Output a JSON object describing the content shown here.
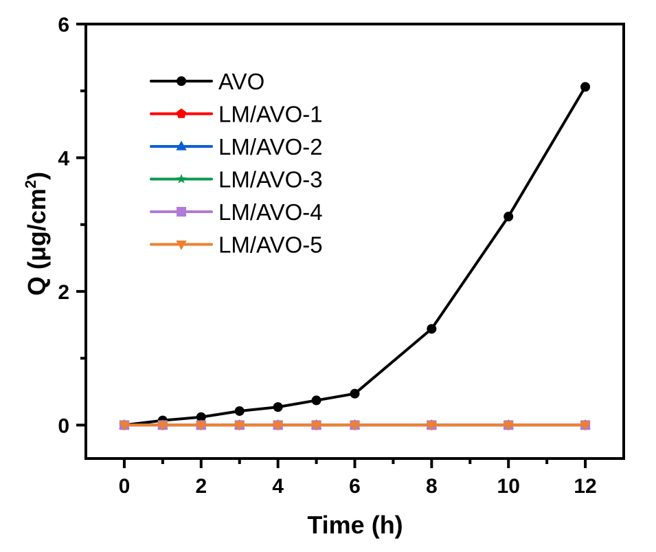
{
  "chart_data": {
    "type": "line",
    "title": "",
    "xlabel": "Time (h)",
    "ylabel": "Q (μg/cm²)",
    "ylabel_parts": {
      "main": "Q (μg/cm",
      "sup": "2",
      "close": ")"
    },
    "xlim": [
      -1,
      13
    ],
    "ylim": [
      -0.5,
      6
    ],
    "x_ticks": [
      0,
      2,
      4,
      6,
      8,
      10,
      12
    ],
    "x_minor_ticks": [
      1,
      3,
      5,
      7,
      9,
      11
    ],
    "y_ticks": [
      0,
      2,
      4,
      6
    ],
    "y_minor_ticks": [
      1,
      3,
      5
    ],
    "grid": false,
    "legend_position": "top-left",
    "x": [
      0,
      1,
      2,
      3,
      4,
      5,
      6,
      8,
      10,
      12
    ],
    "series": [
      {
        "name": "AVO",
        "color": "#000000",
        "marker": "circle",
        "values": [
          0,
          0.07,
          0.12,
          0.21,
          0.27,
          0.37,
          0.47,
          1.44,
          3.12,
          5.06
        ]
      },
      {
        "name": "LM/AVO-1",
        "color": "#ff0000",
        "marker": "pentagon",
        "values": [
          0,
          0,
          0,
          0,
          0,
          0,
          0,
          0,
          0,
          0
        ]
      },
      {
        "name": "LM/AVO-2",
        "color": "#0b5ed7",
        "marker": "triangle-up",
        "values": [
          0,
          0,
          0,
          0,
          0,
          0,
          0,
          0,
          0,
          0
        ]
      },
      {
        "name": "LM/AVO-3",
        "color": "#0a9a4e",
        "marker": "star",
        "values": [
          0,
          0,
          0,
          0,
          0,
          0,
          0,
          0,
          0,
          0
        ]
      },
      {
        "name": "LM/AVO-4",
        "color": "#b07ad8",
        "marker": "square",
        "values": [
          0,
          0,
          0,
          0,
          0,
          0,
          0,
          0,
          0,
          0
        ]
      },
      {
        "name": "LM/AVO-5",
        "color": "#ed8131",
        "marker": "triangle-down",
        "values": [
          0,
          0,
          0,
          0,
          0,
          0,
          0,
          0,
          0,
          0
        ]
      }
    ]
  }
}
